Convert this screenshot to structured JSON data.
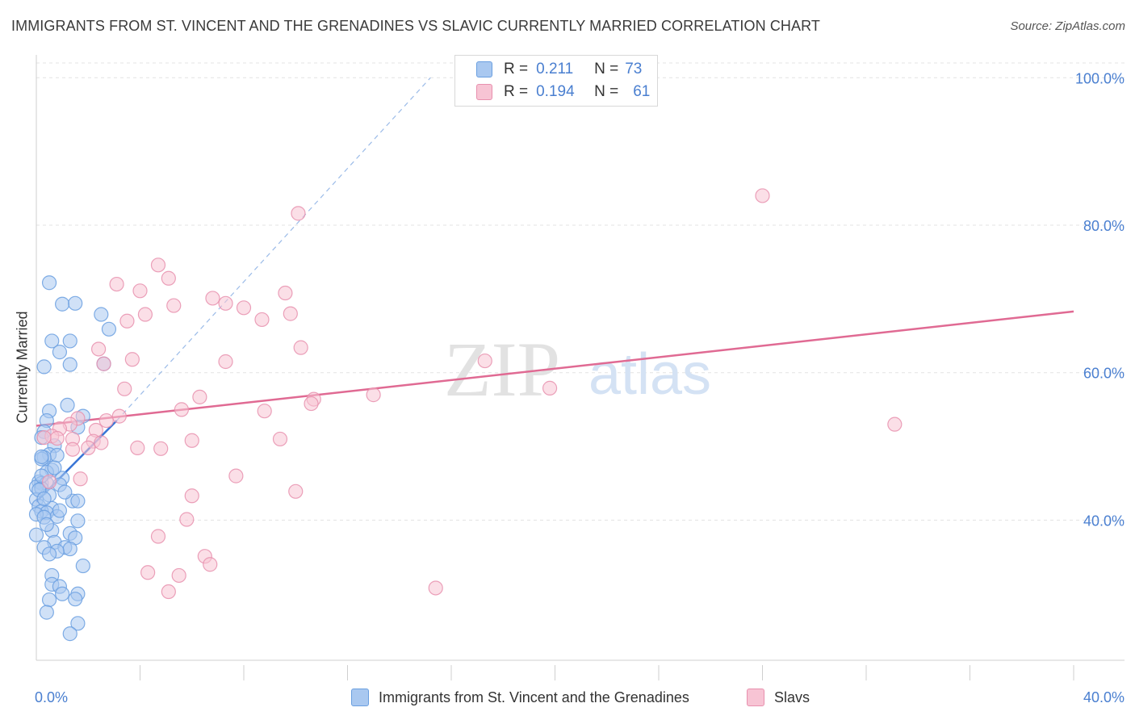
{
  "title": "IMMIGRANTS FROM ST. VINCENT AND THE GRENADINES VS SLAVIC CURRENTLY MARRIED CORRELATION CHART",
  "source": "Source: ZipAtlas.com",
  "watermark": {
    "zip": "ZIP",
    "atlas": "atlas"
  },
  "legend_top": [
    {
      "r_label": "R =",
      "r_value": "0.211",
      "n_label": "N =",
      "n_value": "73",
      "color": "#a9c8f0",
      "border": "#6a9fe0"
    },
    {
      "r_label": "R =",
      "r_value": "0.194",
      "n_label": "N =",
      "n_value": "61",
      "color": "#f7c4d4",
      "border": "#e890ae"
    }
  ],
  "legend_bottom": [
    {
      "label": "Immigrants from St. Vincent and the Grenadines",
      "color": "#a9c8f0",
      "border": "#6a9fe0"
    },
    {
      "label": "Slavs",
      "color": "#f7c4d4",
      "border": "#e890ae"
    }
  ],
  "chart_data": {
    "type": "scatter",
    "xlabel": "",
    "ylabel": "Currently Married",
    "xlim": [
      0,
      40
    ],
    "ylim": [
      21,
      102
    ],
    "x_tick_labels": [
      {
        "value": 0,
        "label": "0.0%"
      },
      {
        "value": 40,
        "label": "40.0%"
      }
    ],
    "y_tick_labels": [
      {
        "value": 100,
        "label": "100.0%"
      },
      {
        "value": 80,
        "label": "80.0%"
      },
      {
        "value": 60,
        "label": "60.0%"
      },
      {
        "value": 40,
        "label": "40.0%"
      }
    ],
    "grid": true,
    "series": [
      {
        "name": "Immigrants from St. Vincent and the Grenadines",
        "color": "#6a9fe0",
        "fill": "#a9c8f0",
        "trend": {
          "x0": 0.0,
          "y0": 42.5,
          "x1": 3.1,
          "y1": 53.5,
          "dashed_to_x": 15.2,
          "dashed_to_y": 100.0,
          "color": "#3a76d6"
        },
        "points": [
          [
            0.5,
            72.2
          ],
          [
            1.0,
            69.3
          ],
          [
            1.5,
            69.4
          ],
          [
            2.5,
            67.9
          ],
          [
            2.8,
            65.9
          ],
          [
            0.6,
            64.3
          ],
          [
            1.3,
            64.3
          ],
          [
            0.9,
            62.8
          ],
          [
            1.3,
            61.1
          ],
          [
            2.6,
            61.2
          ],
          [
            0.3,
            60.8
          ],
          [
            1.2,
            55.6
          ],
          [
            0.5,
            54.8
          ],
          [
            1.8,
            54.1
          ],
          [
            0.4,
            53.5
          ],
          [
            1.6,
            52.6
          ],
          [
            0.3,
            52.0
          ],
          [
            0.2,
            51.2
          ],
          [
            0.7,
            50.1
          ],
          [
            0.5,
            48.9
          ],
          [
            0.8,
            48.8
          ],
          [
            0.3,
            48.5
          ],
          [
            0.2,
            48.3
          ],
          [
            0.6,
            46.8
          ],
          [
            0.4,
            46.5
          ],
          [
            1.0,
            45.7
          ],
          [
            0.1,
            45.2
          ],
          [
            0.2,
            45.0
          ],
          [
            0.4,
            45.0
          ],
          [
            0.9,
            44.8
          ],
          [
            0.0,
            44.5
          ],
          [
            0.2,
            44.3
          ],
          [
            0.5,
            43.4
          ],
          [
            0.0,
            42.8
          ],
          [
            1.4,
            42.6
          ],
          [
            1.6,
            42.6
          ],
          [
            0.1,
            41.9
          ],
          [
            0.6,
            41.6
          ],
          [
            0.2,
            41.2
          ],
          [
            0.4,
            41.0
          ],
          [
            0.0,
            40.8
          ],
          [
            0.8,
            40.5
          ],
          [
            0.3,
            40.4
          ],
          [
            1.6,
            39.9
          ],
          [
            0.6,
            38.6
          ],
          [
            1.3,
            38.2
          ],
          [
            0.0,
            38.0
          ],
          [
            1.5,
            37.6
          ],
          [
            0.7,
            37.0
          ],
          [
            0.3,
            36.3
          ],
          [
            1.1,
            36.3
          ],
          [
            1.3,
            36.1
          ],
          [
            0.8,
            35.8
          ],
          [
            0.5,
            35.4
          ],
          [
            1.8,
            33.8
          ],
          [
            0.6,
            32.5
          ],
          [
            0.6,
            31.3
          ],
          [
            0.9,
            31.0
          ],
          [
            1.0,
            30.0
          ],
          [
            1.6,
            30.0
          ],
          [
            1.5,
            29.3
          ],
          [
            0.5,
            29.2
          ],
          [
            0.4,
            27.5
          ],
          [
            1.6,
            26.0
          ],
          [
            1.3,
            24.6
          ],
          [
            0.2,
            48.6
          ],
          [
            0.1,
            44.1
          ],
          [
            0.3,
            42.9
          ],
          [
            0.9,
            41.3
          ],
          [
            0.4,
            39.4
          ],
          [
            1.1,
            43.8
          ],
          [
            0.7,
            47.1
          ],
          [
            0.2,
            46.0
          ]
        ]
      },
      {
        "name": "Slavs",
        "color": "#e890ae",
        "fill": "#f7c4d4",
        "trend": {
          "x0": 0.0,
          "y0": 52.8,
          "x1": 40.0,
          "y1": 68.3,
          "color": "#e06a93"
        },
        "points": [
          [
            28.0,
            84.0
          ],
          [
            10.1,
            81.6
          ],
          [
            4.7,
            74.6
          ],
          [
            5.1,
            72.8
          ],
          [
            3.1,
            72.0
          ],
          [
            4.0,
            71.1
          ],
          [
            9.6,
            70.8
          ],
          [
            6.8,
            70.1
          ],
          [
            7.3,
            69.4
          ],
          [
            5.3,
            69.1
          ],
          [
            8.0,
            68.8
          ],
          [
            4.2,
            67.9
          ],
          [
            9.8,
            68.0
          ],
          [
            8.7,
            67.2
          ],
          [
            3.5,
            67.0
          ],
          [
            2.4,
            63.2
          ],
          [
            10.2,
            63.4
          ],
          [
            3.7,
            61.8
          ],
          [
            2.6,
            61.2
          ],
          [
            7.3,
            61.5
          ],
          [
            17.3,
            61.6
          ],
          [
            3.4,
            57.8
          ],
          [
            6.3,
            56.7
          ],
          [
            13.0,
            57.0
          ],
          [
            10.7,
            56.4
          ],
          [
            10.6,
            55.8
          ],
          [
            19.8,
            57.9
          ],
          [
            5.6,
            55.0
          ],
          [
            8.8,
            54.8
          ],
          [
            3.2,
            54.1
          ],
          [
            1.6,
            53.8
          ],
          [
            2.7,
            53.5
          ],
          [
            1.3,
            53.0
          ],
          [
            0.9,
            52.4
          ],
          [
            2.3,
            52.2
          ],
          [
            0.6,
            51.4
          ],
          [
            1.4,
            51.0
          ],
          [
            0.8,
            51.1
          ],
          [
            2.2,
            50.7
          ],
          [
            0.3,
            51.2
          ],
          [
            2.5,
            50.5
          ],
          [
            6.0,
            50.8
          ],
          [
            9.4,
            51.0
          ],
          [
            33.1,
            53.0
          ],
          [
            3.9,
            49.8
          ],
          [
            4.8,
            49.7
          ],
          [
            2.0,
            49.8
          ],
          [
            1.4,
            49.6
          ],
          [
            7.7,
            46.0
          ],
          [
            1.7,
            45.6
          ],
          [
            0.5,
            45.2
          ],
          [
            10.0,
            43.9
          ],
          [
            6.0,
            43.3
          ],
          [
            5.8,
            40.1
          ],
          [
            4.7,
            37.8
          ],
          [
            6.5,
            35.1
          ],
          [
            6.7,
            34.0
          ],
          [
            4.3,
            32.9
          ],
          [
            5.5,
            32.5
          ],
          [
            5.1,
            30.3
          ],
          [
            15.4,
            30.8
          ]
        ]
      }
    ]
  }
}
